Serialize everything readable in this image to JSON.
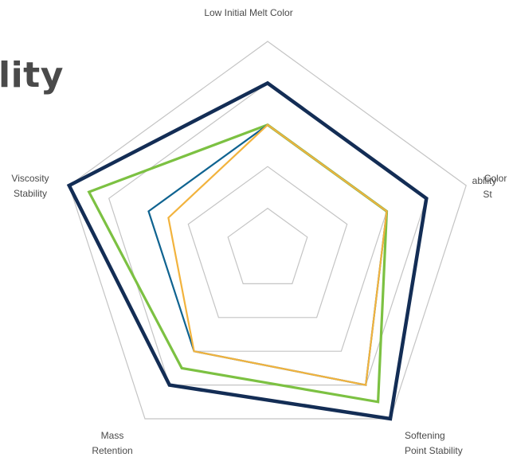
{
  "title_fragment": "lity",
  "chart_data": {
    "type": "radar",
    "axes": [
      {
        "label_lines": [
          "Low Initial Melt Color"
        ]
      },
      {
        "label_lines": [
          "Color",
          "St",
          "ability"
        ]
      },
      {
        "label_lines": [
          "Softening",
          "Point Stability"
        ]
      },
      {
        "label_lines": [
          "Mass",
          "Retention"
        ]
      },
      {
        "label_lines": [
          "Viscosity",
          "Stability"
        ]
      }
    ],
    "rlim": [
      0,
      5
    ],
    "rings": [
      1,
      2,
      3,
      4,
      5
    ],
    "grid": true,
    "legend": "none",
    "series": [
      {
        "color": "#132d55",
        "values": [
          4.0,
          4.0,
          5.0,
          4.0,
          5.0
        ]
      },
      {
        "color": "#7cc142",
        "values": [
          3.0,
          3.0,
          4.5,
          3.5,
          4.5
        ]
      },
      {
        "color": "#0f6390",
        "values": [
          3.0,
          3.0,
          4.0,
          3.0,
          3.0
        ]
      },
      {
        "color": "#f2b33d",
        "values": [
          3.0,
          3.0,
          4.0,
          3.0,
          2.5
        ]
      }
    ]
  }
}
